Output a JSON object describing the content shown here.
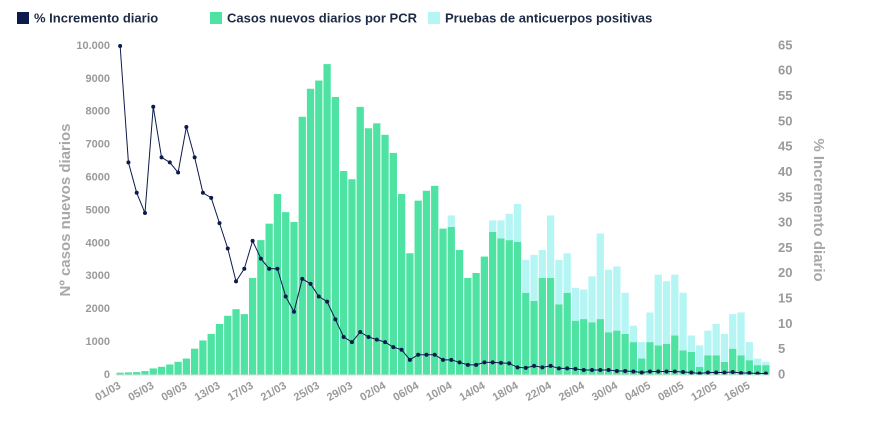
{
  "chart_data": {
    "type": "bar",
    "stacked": true,
    "y_label": "Nº casos nuevos diarios",
    "y2_label": "% Incremento diario",
    "categories": [
      "01/03",
      null,
      null,
      null,
      "05/03",
      null,
      null,
      null,
      "09/03",
      null,
      null,
      null,
      "13/03",
      null,
      null,
      null,
      "17/03",
      null,
      null,
      null,
      "21/03",
      null,
      null,
      null,
      "25/03",
      null,
      null,
      null,
      "29/03",
      null,
      null,
      null,
      "02/04",
      null,
      null,
      null,
      "06/04",
      null,
      null,
      null,
      "10/04",
      null,
      null,
      null,
      "14/04",
      null,
      null,
      null,
      "18/04",
      null,
      null,
      null,
      "22/04",
      null,
      null,
      null,
      "26/04",
      null,
      null,
      null,
      "30/04",
      null,
      null,
      null,
      "04/05",
      null,
      null,
      null,
      "08/05",
      null,
      null,
      null,
      "12/05",
      null,
      null,
      null,
      "16/05",
      null,
      null
    ],
    "ylim": [
      0,
      10000
    ],
    "yticks": [
      0,
      {
        "value": 1000,
        "label": "1000"
      },
      2000,
      3000,
      4000,
      5000,
      6000,
      7000,
      8000,
      9000,
      {
        "value": 10000,
        "label": "10.000"
      }
    ],
    "y2lim": [
      0,
      65
    ],
    "y2ticks": [
      0,
      5,
      10,
      15,
      20,
      25,
      30,
      35,
      40,
      45,
      50,
      55,
      60,
      65
    ],
    "series": [
      {
        "name": "% Incremento diario",
        "type": "line",
        "axis": "y2",
        "color": "#0d1b4c",
        "values": [
          65,
          42,
          36,
          32,
          53,
          43,
          42,
          40,
          49,
          43,
          36,
          35,
          30,
          25,
          18.5,
          21,
          26.5,
          23,
          21,
          21,
          15.5,
          12.5,
          19,
          18,
          15.5,
          14.5,
          11,
          7.5,
          6.5,
          8.5,
          7.5,
          7,
          6.5,
          5.5,
          5,
          3,
          4,
          4,
          4,
          3,
          3,
          2.5,
          2,
          2,
          2.5,
          2.5,
          2.4,
          2.3,
          1.5,
          1.4,
          1.8,
          1.5,
          1.8,
          1.3,
          1.3,
          1.2,
          1,
          1,
          1,
          1,
          0.8,
          0.8,
          0.7,
          0.5,
          0.7,
          0.7,
          0.7,
          0.7,
          0.6,
          0.5,
          0.3,
          0.5,
          0.5,
          0.5,
          0.6,
          0.4,
          0.4,
          0.3,
          0.3
        ]
      },
      {
        "name": "Casos nuevos diarios por PCR",
        "type": "bar",
        "color": "#4ee3a2",
        "values": [
          70,
          80,
          90,
          120,
          200,
          250,
          320,
          400,
          500,
          800,
          1050,
          1250,
          1550,
          1800,
          2000,
          1850,
          2950,
          4100,
          4600,
          5500,
          4950,
          4650,
          7850,
          8700,
          8950,
          9450,
          8450,
          6200,
          5950,
          8150,
          7500,
          7650,
          7300,
          6750,
          5500,
          3700,
          5300,
          5600,
          5750,
          4450,
          4500,
          3800,
          2950,
          3100,
          3600,
          4350,
          4150,
          4100,
          4050,
          2500,
          2250,
          2950,
          2950,
          2150,
          2500,
          1650,
          1700,
          1600,
          1700,
          1300,
          1350,
          1250,
          1000,
          500,
          1000,
          900,
          950,
          1200,
          750,
          700,
          250,
          600,
          600,
          400,
          800,
          600,
          450,
          300,
          300
        ]
      },
      {
        "name": "Pruebas de anticuerpos positivas",
        "type": "bar",
        "color": "#b5f6f4",
        "values": [
          null,
          null,
          null,
          null,
          null,
          null,
          null,
          null,
          null,
          null,
          null,
          null,
          null,
          null,
          null,
          null,
          null,
          null,
          null,
          null,
          null,
          null,
          null,
          null,
          null,
          null,
          null,
          null,
          null,
          null,
          null,
          null,
          null,
          null,
          null,
          null,
          null,
          null,
          null,
          null,
          350,
          null,
          null,
          null,
          null,
          350,
          550,
          800,
          1150,
          1000,
          1400,
          850,
          1900,
          1350,
          1200,
          1000,
          900,
          1400,
          2600,
          1900,
          1950,
          1250,
          500,
          500,
          900,
          2150,
          1900,
          1850,
          1750,
          500,
          650,
          750,
          950,
          850,
          1050,
          1300,
          550,
          200,
          100
        ]
      }
    ]
  }
}
